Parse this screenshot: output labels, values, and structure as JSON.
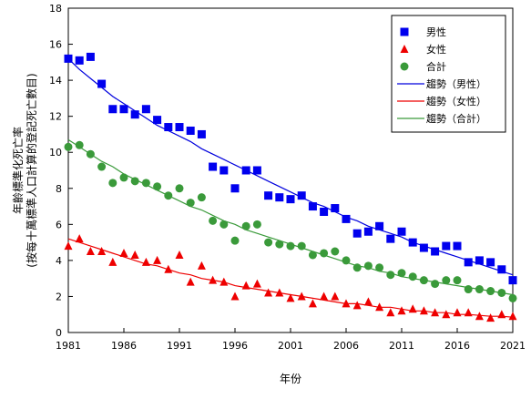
{
  "chart_data": {
    "type": "scatter",
    "xlabel": "年份",
    "ylabel_lines": [
      "年齡標準化死亡率",
      "(按每十萬標準人口計算的登記死亡數目)"
    ],
    "xlim": [
      1981,
      2021
    ],
    "ylim": [
      0,
      18
    ],
    "x_ticks": [
      1981,
      1986,
      1991,
      1996,
      2001,
      2006,
      2011,
      2016,
      2021
    ],
    "y_ticks": [
      0,
      2,
      4,
      6,
      8,
      10,
      12,
      14,
      16,
      18
    ],
    "grid": false,
    "legend_position": "top-right",
    "x": [
      1981,
      1982,
      1983,
      1984,
      1985,
      1986,
      1987,
      1988,
      1989,
      1990,
      1991,
      1992,
      1993,
      1994,
      1995,
      1996,
      1997,
      1998,
      1999,
      2000,
      2001,
      2002,
      2003,
      2004,
      2005,
      2006,
      2007,
      2008,
      2009,
      2010,
      2011,
      2012,
      2013,
      2014,
      2015,
      2016,
      2017,
      2018,
      2019,
      2020,
      2021
    ],
    "series": [
      {
        "name": "男性",
        "marker": "square",
        "color": "#0000ee",
        "values": [
          15.2,
          15.1,
          15.3,
          13.8,
          12.4,
          12.4,
          12.1,
          12.4,
          11.8,
          11.4,
          11.4,
          11.2,
          11.0,
          9.2,
          9.0,
          8.0,
          9.0,
          9.0,
          7.6,
          7.5,
          7.4,
          7.6,
          7.0,
          6.7,
          6.9,
          6.3,
          5.5,
          5.6,
          5.9,
          5.2,
          5.6,
          5.0,
          4.7,
          4.5,
          4.8,
          4.8,
          3.9,
          4.0,
          3.9,
          3.5,
          2.9
        ]
      },
      {
        "name": "女性",
        "marker": "triangle",
        "color": "#ee0000",
        "values": [
          4.8,
          5.2,
          4.5,
          4.5,
          3.9,
          4.4,
          4.3,
          3.9,
          4.0,
          3.5,
          4.3,
          2.8,
          3.7,
          2.9,
          2.8,
          2.0,
          2.6,
          2.7,
          2.2,
          2.2,
          1.9,
          2.0,
          1.6,
          2.0,
          2.0,
          1.6,
          1.5,
          1.7,
          1.4,
          1.1,
          1.2,
          1.3,
          1.2,
          1.1,
          1.0,
          1.1,
          1.1,
          0.9,
          0.8,
          1.0,
          0.9
        ]
      },
      {
        "name": "合計",
        "marker": "circle",
        "color": "#3a9a3a",
        "values": [
          10.3,
          10.4,
          9.9,
          9.2,
          8.3,
          8.6,
          8.4,
          8.3,
          8.1,
          7.6,
          8.0,
          7.2,
          7.5,
          6.2,
          6.0,
          5.1,
          5.9,
          6.0,
          5.0,
          4.9,
          4.8,
          4.8,
          4.3,
          4.4,
          4.5,
          4.0,
          3.6,
          3.7,
          3.6,
          3.2,
          3.3,
          3.1,
          2.9,
          2.7,
          2.9,
          2.9,
          2.4,
          2.4,
          2.3,
          2.2,
          1.9
        ]
      },
      {
        "name": "趨勢（男性）",
        "type": "line",
        "color": "#0000dd",
        "values": [
          15.2,
          14.6,
          14.1,
          13.6,
          13.1,
          12.7,
          12.3,
          11.9,
          11.5,
          11.2,
          10.9,
          10.6,
          10.2,
          9.9,
          9.6,
          9.3,
          9.0,
          8.7,
          8.4,
          8.1,
          7.8,
          7.5,
          7.2,
          7.0,
          6.7,
          6.4,
          6.2,
          5.9,
          5.7,
          5.5,
          5.3,
          5.0,
          4.8,
          4.6,
          4.4,
          4.2,
          4.0,
          3.8,
          3.6,
          3.4,
          3.2
        ]
      },
      {
        "name": "趨勢（女性）",
        "type": "line",
        "color": "#ee0000",
        "values": [
          5.2,
          5.0,
          4.8,
          4.6,
          4.4,
          4.2,
          4.0,
          3.8,
          3.7,
          3.5,
          3.3,
          3.2,
          3.0,
          2.9,
          2.8,
          2.6,
          2.5,
          2.4,
          2.3,
          2.2,
          2.1,
          2.0,
          1.9,
          1.8,
          1.7,
          1.6,
          1.6,
          1.5,
          1.4,
          1.4,
          1.3,
          1.2,
          1.2,
          1.1,
          1.1,
          1.0,
          1.0,
          0.95,
          0.9,
          0.9,
          0.85
        ]
      },
      {
        "name": "趨勢（合計）",
        "type": "line",
        "color": "#3a9a3a",
        "values": [
          10.7,
          10.3,
          9.9,
          9.5,
          9.2,
          8.8,
          8.5,
          8.2,
          7.9,
          7.6,
          7.3,
          7.0,
          6.8,
          6.5,
          6.2,
          6.0,
          5.7,
          5.5,
          5.3,
          5.1,
          4.9,
          4.7,
          4.5,
          4.3,
          4.1,
          3.9,
          3.7,
          3.6,
          3.4,
          3.3,
          3.1,
          3.0,
          2.9,
          2.8,
          2.7,
          2.6,
          2.5,
          2.4,
          2.3,
          2.2,
          2.1
        ]
      }
    ]
  }
}
